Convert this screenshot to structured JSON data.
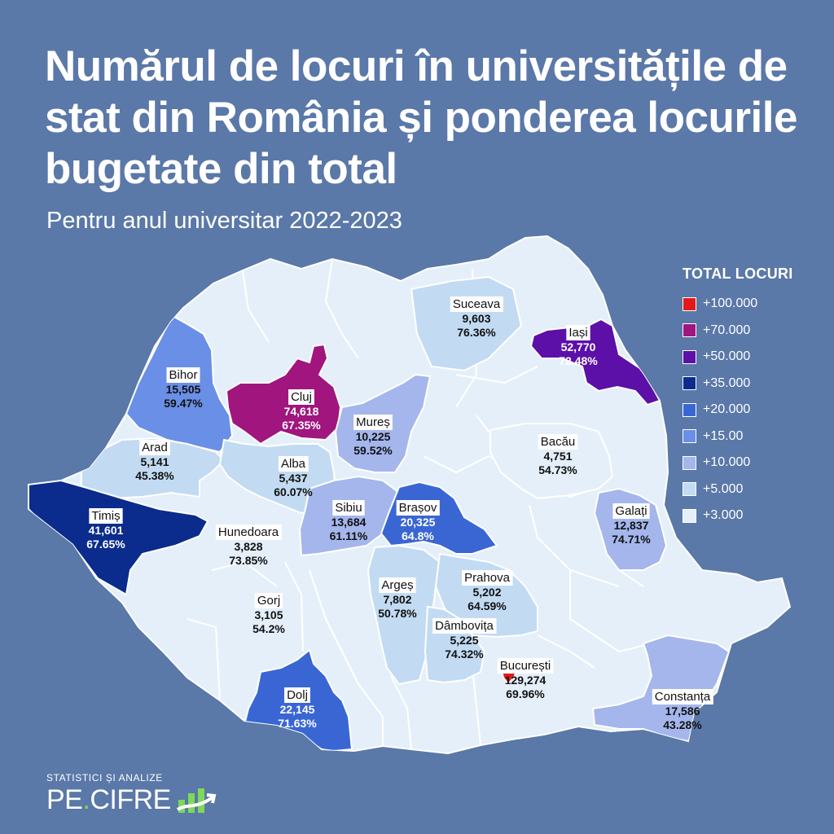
{
  "title": "Numărul de locuri în universitățile de stat din România și ponderea locurile bugetate din total",
  "subtitle": "Pentru anul universitar 2022-2023",
  "legend": {
    "title": "TOTAL LOCURI",
    "items": [
      {
        "label": "+100.000",
        "color": "#e31a1c"
      },
      {
        "label": "+70.000",
        "color": "#a0157e"
      },
      {
        "label": "+50.000",
        "color": "#5c10a8"
      },
      {
        "label": "+35.000",
        "color": "#0b2c8c"
      },
      {
        "label": "+20.000",
        "color": "#3a66d4"
      },
      {
        "label": "+15.00",
        "color": "#6a8fe6"
      },
      {
        "label": "+10.000",
        "color": "#a4b6ec"
      },
      {
        "label": "+5.000",
        "color": "#c2dbf3"
      },
      {
        "label": "+3.000",
        "color": "#e4eff9"
      }
    ]
  },
  "counties": [
    {
      "name": "Suceava",
      "total": "9,603",
      "pct": "76.36%"
    },
    {
      "name": "Iași",
      "total": "52,770",
      "pct": "72.48%"
    },
    {
      "name": "Bihor",
      "total": "15,505",
      "pct": "59.47%"
    },
    {
      "name": "Cluj",
      "total": "74,618",
      "pct": "67.35%"
    },
    {
      "name": "Mureș",
      "total": "10,225",
      "pct": "59.52%"
    },
    {
      "name": "Arad",
      "total": "5,141",
      "pct": "45.38%"
    },
    {
      "name": "Alba",
      "total": "5,437",
      "pct": "60.07%"
    },
    {
      "name": "Bacău",
      "total": "4,751",
      "pct": "54.73%"
    },
    {
      "name": "Timiș",
      "total": "41,601",
      "pct": "67.65%"
    },
    {
      "name": "Sibiu",
      "total": "13,684",
      "pct": "61.11%"
    },
    {
      "name": "Brașov",
      "total": "20,325",
      "pct": "64.8%"
    },
    {
      "name": "Galați",
      "total": "12,837",
      "pct": "74.71%"
    },
    {
      "name": "Hunedoara",
      "total": "3,828",
      "pct": "73.85%"
    },
    {
      "name": "Argeș",
      "total": "7,802",
      "pct": "50.78%"
    },
    {
      "name": "Prahova",
      "total": "5,202",
      "pct": "64.59%"
    },
    {
      "name": "Gorj",
      "total": "3,105",
      "pct": "54.2%"
    },
    {
      "name": "Dâmbovița",
      "total": "5,225",
      "pct": "74.32%"
    },
    {
      "name": "București",
      "total": "129,274",
      "pct": "69.96%"
    },
    {
      "name": "Dolj",
      "total": "22,145",
      "pct": "71.63%"
    },
    {
      "name": "Constanța",
      "total": "17,586",
      "pct": "43.28%"
    }
  ],
  "brand": {
    "tagline": "STATISTICI ȘI ANALIZE",
    "name_part1": "PE",
    "dot": ".",
    "name_part2": "CIFRE"
  }
}
